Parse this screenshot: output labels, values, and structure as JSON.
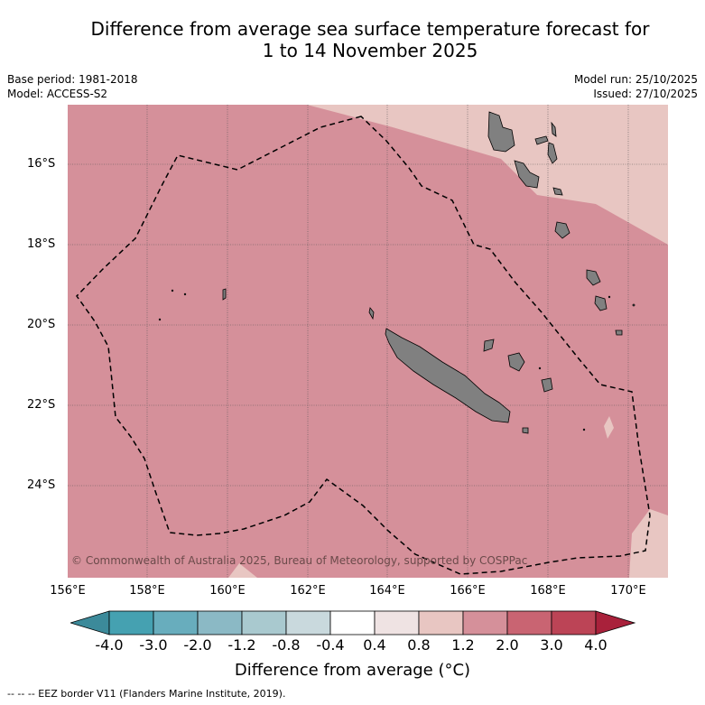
{
  "title": {
    "line1": "Difference from average sea surface temperature forecast for",
    "line2": "1 to 14 November 2025"
  },
  "meta": {
    "base_period": "Base period: 1981-2018",
    "model": "Model: ACCESS-S2",
    "model_run": "Model run: 25/10/2025",
    "issued": "Issued: 27/10/2025"
  },
  "map": {
    "copyright": "© Commonwealth of Australia 2025, Bureau of Meteorology, supported by COSPPac",
    "lat_labels": [
      "16°S",
      "18°S",
      "20°S",
      "22°S",
      "24°S"
    ],
    "lon_labels": [
      "156°E",
      "158°E",
      "160°E",
      "162°E",
      "164°E",
      "166°E",
      "168°E",
      "170°E"
    ],
    "colors": {
      "anomaly_1_2_to_2_0": "#d5909a",
      "anomaly_0_8_to_1_2": "#e8c6c2",
      "land": "#808080",
      "eez_line": "#000000"
    }
  },
  "colorbar": {
    "labels": [
      "-4.0",
      "-3.0",
      "-2.0",
      "-1.2",
      "-0.8",
      "-0.4",
      "0.4",
      "0.8",
      "1.2",
      "2.0",
      "3.0",
      "4.0"
    ],
    "colors": [
      "#3c8a9a",
      "#45a1b1",
      "#68adbd",
      "#8bb9c5",
      "#a9c9cf",
      "#c9d9dd",
      "#ffffff",
      "#efe3e3",
      "#e8c6c2",
      "#d5909a",
      "#c96472",
      "#bc4456",
      "#a9213b"
    ],
    "title": "Difference from average (°C)"
  },
  "footer": "--  --  -- EEZ border V11 (Flanders Marine Institute, 2019)."
}
